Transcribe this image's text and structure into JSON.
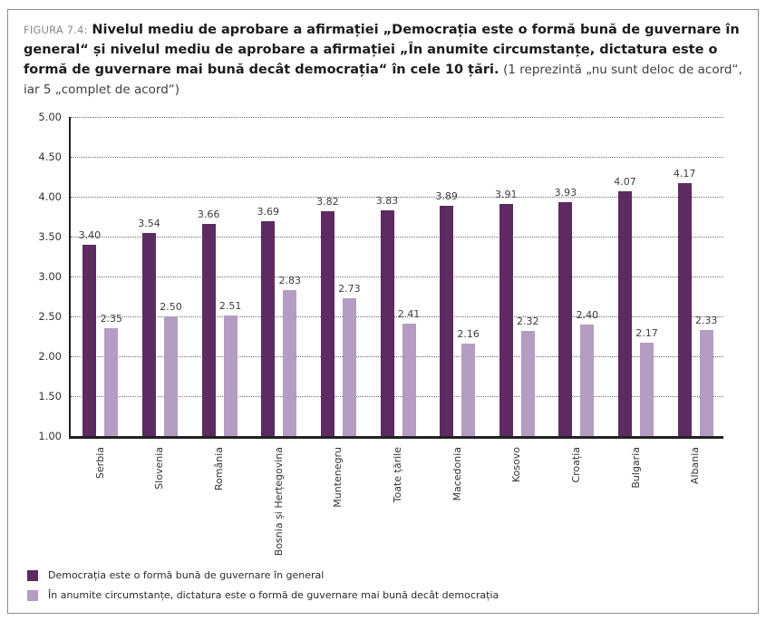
{
  "figure": {
    "label": "FIGURA 7.4:",
    "title_bold": "Nivelul mediu de aprobare a afirmației „Democrația este o formă bună de guvernare în general“ și nivelul mediu de aprobare a afirmației „În anumite circumstanțe, dictatura este o formă de guvernare mai bună decât democrația“ în cele 10 țări.",
    "title_note": "(1 reprezintă „nu sunt deloc de acord“, iar 5 „complet de acord“)"
  },
  "chart_data": {
    "type": "bar",
    "categories": [
      "Serbia",
      "Slovenia",
      "România",
      "Bosnia și Herțegovina",
      "Muntenegru",
      "Toate țările",
      "Macedonia",
      "Kosovo",
      "Croația",
      "Bulgaria",
      "Albania"
    ],
    "series": [
      {
        "name": "Democrația este o formă bună de guvernare în general",
        "color": "#5d2a61",
        "values": [
          "3.40",
          "3.54",
          "3.66",
          "3.69",
          "3.82",
          "3.83",
          "3.89",
          "3.91",
          "3.93",
          "4.07",
          "4.17"
        ]
      },
      {
        "name": "În anumite circumstanțe, dictatura este o formă de guvernare mai bună decât democrația",
        "color": "#b59cc3",
        "values": [
          "2.35",
          "2.50",
          "2.51",
          "2.83",
          "2.73",
          "2.41",
          "2.16",
          "2.32",
          "2.40",
          "2.17",
          "2.33"
        ]
      }
    ],
    "ylim": [
      1.0,
      5.0
    ],
    "yticks": [
      "5.00",
      "4.50",
      "4.00",
      "3.50",
      "3.00",
      "2.50",
      "2.00",
      "1.50",
      "1.00"
    ],
    "grid": "horizontal-dotted",
    "legend_position": "bottom-left",
    "value_labels": true,
    "axis_color": "#222222"
  }
}
